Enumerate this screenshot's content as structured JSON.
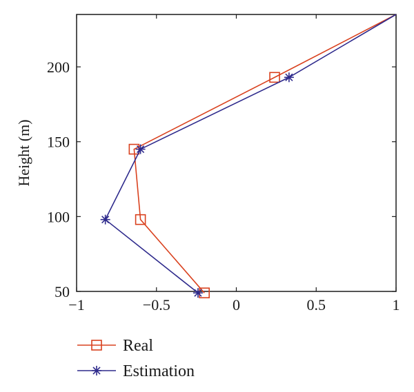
{
  "chart_data": {
    "type": "line",
    "xlabel": "",
    "ylabel": "Height (m)",
    "xlim": [
      -1,
      1
    ],
    "ylim": [
      50,
      235
    ],
    "xticks": [
      -1,
      -0.5,
      0,
      0.5,
      1
    ],
    "xtick_labels": [
      "−1",
      "−0.5",
      "0",
      "0.5",
      "1"
    ],
    "yticks": [
      50,
      100,
      150,
      200
    ],
    "ytick_labels": [
      "50",
      "100",
      "150",
      "200"
    ],
    "grid": false,
    "legend_position": "bottom-left, below plot",
    "series": [
      {
        "name": "Real",
        "color": "#d9411e",
        "marker": "square",
        "points": [
          {
            "x": 1.0,
            "y": 235
          },
          {
            "x": 0.24,
            "y": 193
          },
          {
            "x": -0.64,
            "y": 145
          },
          {
            "x": -0.6,
            "y": 98
          },
          {
            "x": -0.2,
            "y": 49
          }
        ]
      },
      {
        "name": "Estimation",
        "color": "#2e2a8c",
        "marker": "asterisk",
        "points": [
          {
            "x": 1.0,
            "y": 235
          },
          {
            "x": 0.33,
            "y": 193
          },
          {
            "x": -0.6,
            "y": 145
          },
          {
            "x": -0.82,
            "y": 98
          },
          {
            "x": -0.24,
            "y": 49
          }
        ]
      }
    ]
  }
}
